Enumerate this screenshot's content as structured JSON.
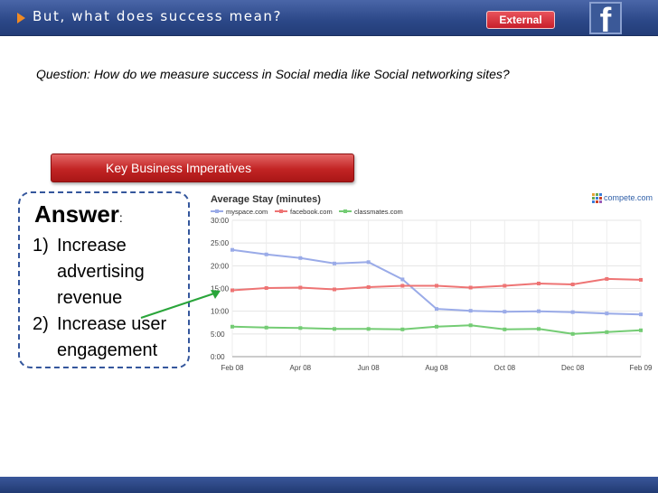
{
  "header": {
    "title": "But, what does success mean?",
    "badge": "External",
    "logo_letter": "f",
    "logo_icon": "facebook-icon"
  },
  "question": "Question: How do we measure success in Social media like Social networking sites?",
  "imperatives_label": "Key Business Imperatives",
  "answer": {
    "heading": "Answer",
    "colon": ":",
    "items": [
      {
        "num": "1)",
        "text": "Increase advertising revenue"
      },
      {
        "num": "2)",
        "text": "Increase user engagement"
      }
    ]
  },
  "colors": {
    "myspace": "#9aabe8",
    "facebook": "#ee7474",
    "classmates": "#74cc74",
    "arrow": "#29a53a"
  },
  "chart_data": {
    "type": "line",
    "title": "Average Stay (minutes)",
    "brand": "compete.com",
    "legend_position": "top-left",
    "grid": true,
    "x": [
      "Feb 08",
      "Mar 08",
      "Apr 08",
      "May 08",
      "Jun 08",
      "Jul 08",
      "Aug 08",
      "Sep 08",
      "Oct 08",
      "Nov 08",
      "Dec 08",
      "Jan 09",
      "Feb 09"
    ],
    "x_tick_labels": [
      "Feb 08",
      "Apr 08",
      "Jun 08",
      "Aug 08",
      "Oct 08",
      "Dec 08",
      "Feb 09"
    ],
    "y_tick_labels": [
      "0:00",
      "5:00",
      "10:00",
      "15:00",
      "20:00",
      "25:00",
      "30:00"
    ],
    "ylim": [
      0,
      30
    ],
    "series": [
      {
        "name": "myspace.com",
        "values": [
          23.5,
          22.5,
          21.7,
          20.5,
          20.8,
          17.0,
          10.5,
          10.1,
          9.9,
          10.0,
          9.8,
          9.5,
          9.3
        ]
      },
      {
        "name": "facebook.com",
        "values": [
          14.6,
          15.1,
          15.2,
          14.8,
          15.3,
          15.6,
          15.6,
          15.2,
          15.6,
          16.1,
          15.9,
          17.1,
          16.9
        ]
      },
      {
        "name": "classmates.com",
        "values": [
          6.6,
          6.4,
          6.3,
          6.1,
          6.1,
          6.0,
          6.6,
          6.9,
          6.0,
          6.1,
          5.0,
          5.4,
          5.8
        ]
      }
    ]
  }
}
